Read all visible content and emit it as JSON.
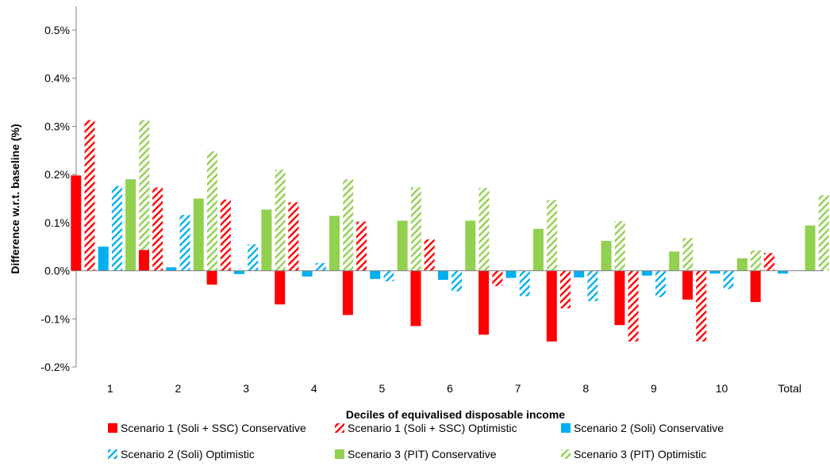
{
  "chart_data": {
    "type": "bar",
    "title": "",
    "xlabel": "Deciles of equivalised disposable income",
    "ylabel": "Difference w.r.t. baseline (%)",
    "ylim": [
      -0.002,
      0.005
    ],
    "y_ticks": [
      -0.002,
      -0.001,
      0.0,
      0.001,
      0.002,
      0.003,
      0.004,
      0.005
    ],
    "y_tick_labels": [
      "-0.2%",
      "-0.1%",
      "0.0%",
      "0.1%",
      "0.2%",
      "0.3%",
      "0.4%",
      "0.5%"
    ],
    "grid": false,
    "legend_position": "bottom",
    "categories": [
      "1",
      "2",
      "3",
      "4",
      "5",
      "6",
      "7",
      "8",
      "9",
      "10",
      "Total"
    ],
    "series": [
      {
        "name": "Scenario 1 (Soli + SSC) Conservative",
        "color": "#ff0000",
        "pattern": "solid",
        "values": [
          0.00198,
          0.00043,
          -0.00029,
          -0.0007,
          -0.00092,
          -0.00115,
          -0.00133,
          -0.00147,
          -0.00113,
          -0.0006,
          -0.00065
        ]
      },
      {
        "name": "Scenario 1 (Soli + SSC) Optimistic",
        "color": "#ff0000",
        "pattern": "hatched",
        "values": [
          0.00313,
          0.00173,
          0.00148,
          0.00142,
          0.00102,
          0.00065,
          -0.00032,
          -0.00078,
          -0.00147,
          -0.00147,
          0.00037
        ]
      },
      {
        "name": "Scenario 2 (Soli) Conservative",
        "color": "#00b0f0",
        "pattern": "solid",
        "values": [
          0.0005,
          7e-05,
          -7e-05,
          -0.00012,
          -0.00017,
          -0.00019,
          -0.00015,
          -0.00014,
          -0.0001,
          -6e-05,
          -6e-05
        ]
      },
      {
        "name": "Scenario 2 (Soli) Optimistic",
        "color": "#00b0f0",
        "pattern": "hatched",
        "values": [
          0.00176,
          0.00116,
          0.00055,
          0.00016,
          -0.00022,
          -0.00043,
          -0.00053,
          -0.00063,
          -0.00055,
          -0.00038,
          0.0
        ]
      },
      {
        "name": "Scenario 3 (PIT) Conservative",
        "color": "#92d050",
        "pattern": "solid",
        "values": [
          0.0019,
          0.0015,
          0.00127,
          0.00114,
          0.00104,
          0.00104,
          0.00087,
          0.00062,
          0.0004,
          0.00026,
          0.00094
        ]
      },
      {
        "name": "Scenario 3 (PIT) Optimistic",
        "color": "#92d050",
        "pattern": "hatched",
        "values": [
          0.00313,
          0.00248,
          0.0021,
          0.0019,
          0.00173,
          0.00172,
          0.00147,
          0.00103,
          0.00068,
          0.00042,
          0.00157
        ]
      }
    ]
  }
}
